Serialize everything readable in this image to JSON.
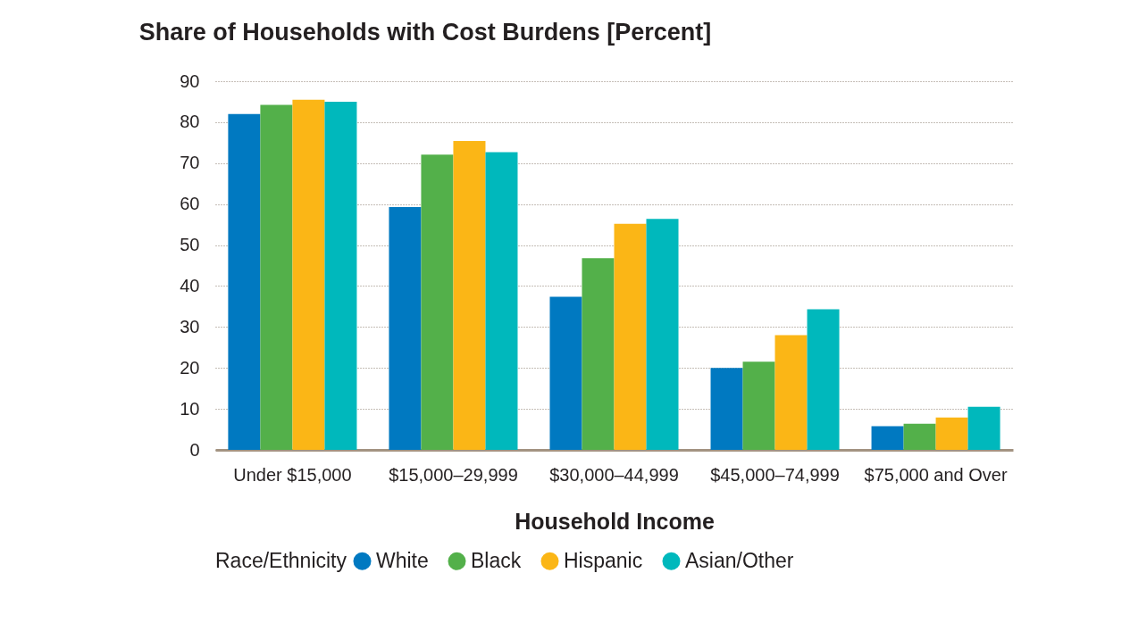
{
  "chart_data": {
    "type": "bar",
    "title": "Share of Households with Cost Burdens [Percent]",
    "xlabel": "Household Income",
    "legend_title": "Race/Ethnicity",
    "categories": [
      "Under $15,000",
      "$15,000–29,999",
      "$30,000–44,999",
      "$45,000–74,999",
      "$75,000 and Over"
    ],
    "series": [
      {
        "name": "White",
        "color": "#0079c1",
        "values": [
          82,
          59.3,
          37.4,
          20,
          5.8
        ]
      },
      {
        "name": "Black",
        "color": "#53b04a",
        "values": [
          84.2,
          72.1,
          46.8,
          21.5,
          6.4
        ]
      },
      {
        "name": "Hispanic",
        "color": "#fbb616",
        "values": [
          85.5,
          75.4,
          55.2,
          28,
          7.9
        ]
      },
      {
        "name": "Asian/Other",
        "color": "#00b8bc",
        "values": [
          85,
          72.7,
          56.4,
          34.3,
          10.5
        ]
      }
    ],
    "ylim": [
      0,
      90
    ],
    "yticks": [
      0,
      10,
      20,
      30,
      40,
      50,
      60,
      70,
      80,
      90
    ],
    "grid": "y",
    "legend": "bottom"
  }
}
